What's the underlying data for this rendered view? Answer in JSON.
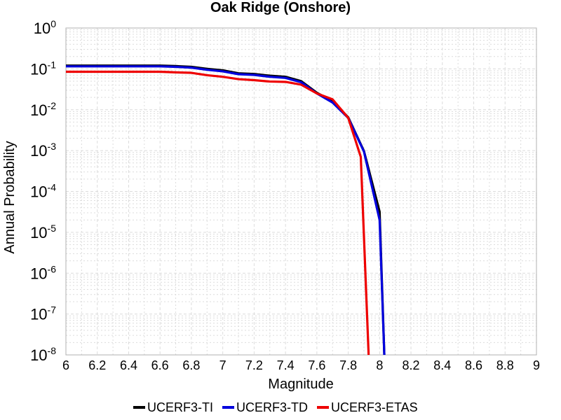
{
  "chart_data": {
    "type": "line",
    "title": "Oak Ridge (Onshore)",
    "xlabel": "Magnitude",
    "ylabel": "Annual Probability",
    "xlim": [
      6,
      9
    ],
    "ylim": [
      1e-08,
      1
    ],
    "yscale": "log",
    "grid": true,
    "legend_position": "bottom",
    "x_ticks": [
      "6",
      "6.2",
      "6.4",
      "6.6",
      "6.8",
      "7",
      "7.2",
      "7.4",
      "7.6",
      "7.8",
      "8",
      "8.2",
      "8.4",
      "8.6",
      "8.8",
      "9"
    ],
    "y_ticks": [
      {
        "base": "10",
        "exp": "0"
      },
      {
        "base": "10",
        "exp": "-1"
      },
      {
        "base": "10",
        "exp": "-2"
      },
      {
        "base": "10",
        "exp": "-3"
      },
      {
        "base": "10",
        "exp": "-4"
      },
      {
        "base": "10",
        "exp": "-5"
      },
      {
        "base": "10",
        "exp": "-6"
      },
      {
        "base": "10",
        "exp": "-7"
      },
      {
        "base": "10",
        "exp": "-8"
      }
    ],
    "series": [
      {
        "name": "UCERF3-TI",
        "color": "#000000",
        "x": [
          6.0,
          6.1,
          6.2,
          6.3,
          6.4,
          6.5,
          6.6,
          6.7,
          6.8,
          6.9,
          7.0,
          7.1,
          7.2,
          7.3,
          7.4,
          7.5,
          7.6,
          7.7,
          7.8,
          7.9,
          8.0,
          8.03
        ],
        "y": [
          0.12,
          0.12,
          0.12,
          0.12,
          0.12,
          0.12,
          0.12,
          0.117,
          0.112,
          0.1,
          0.092,
          0.078,
          0.075,
          0.068,
          0.064,
          0.05,
          0.026,
          0.016,
          0.0065,
          0.00098,
          3.2e-05,
          1e-08
        ]
      },
      {
        "name": "UCERF3-TD",
        "color": "#0000dd",
        "x": [
          6.0,
          6.1,
          6.2,
          6.3,
          6.4,
          6.5,
          6.6,
          6.7,
          6.8,
          6.9,
          7.0,
          7.1,
          7.2,
          7.3,
          7.4,
          7.5,
          7.6,
          7.7,
          7.8,
          7.9,
          8.0,
          8.03
        ],
        "y": [
          0.115,
          0.115,
          0.115,
          0.115,
          0.115,
          0.115,
          0.115,
          0.112,
          0.107,
          0.095,
          0.087,
          0.074,
          0.071,
          0.064,
          0.06,
          0.047,
          0.025,
          0.015,
          0.0063,
          0.00095,
          2e-05,
          1e-08
        ]
      },
      {
        "name": "UCERF3-ETAS",
        "color": "#ee0000",
        "x": [
          6.0,
          6.1,
          6.2,
          6.3,
          6.4,
          6.5,
          6.6,
          6.7,
          6.8,
          6.9,
          7.0,
          7.1,
          7.2,
          7.3,
          7.4,
          7.5,
          7.6,
          7.7,
          7.8,
          7.88,
          7.93
        ],
        "y": [
          0.085,
          0.085,
          0.085,
          0.085,
          0.085,
          0.085,
          0.085,
          0.082,
          0.08,
          0.07,
          0.064,
          0.056,
          0.053,
          0.049,
          0.048,
          0.041,
          0.025,
          0.018,
          0.0063,
          0.0007,
          1e-08
        ]
      }
    ]
  }
}
